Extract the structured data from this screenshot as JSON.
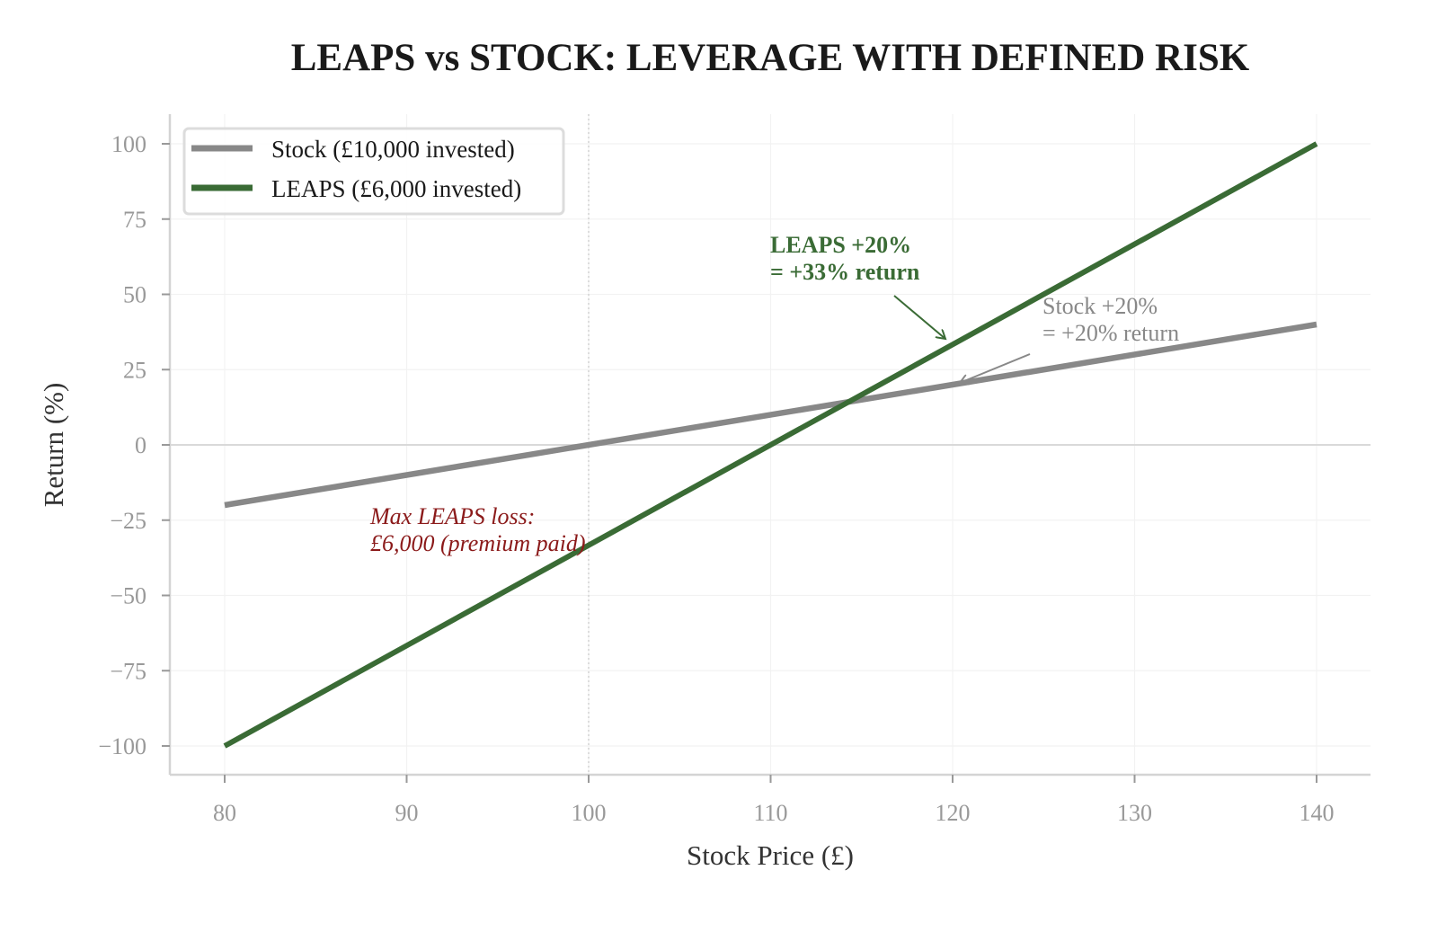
{
  "chart_data": {
    "type": "line",
    "title": "LEAPS vs STOCK: LEVERAGE WITH DEFINED RISK",
    "xlabel": "Stock Price (£)",
    "ylabel": "Return (%)",
    "xlim": [
      77,
      143
    ],
    "ylim": [
      -110,
      110
    ],
    "xticks": [
      80,
      90,
      100,
      110,
      120,
      130,
      140
    ],
    "yticks": [
      -100,
      -75,
      -50,
      -25,
      0,
      25,
      50,
      75,
      100
    ],
    "xtick_labels": [
      "80",
      "90",
      "100",
      "110",
      "120",
      "130",
      "140"
    ],
    "ytick_labels": [
      "−100",
      "−75",
      "−50",
      "−25",
      "0",
      "25",
      "50",
      "75",
      "100"
    ],
    "grid": true,
    "reference_lines": {
      "vertical_x": 100,
      "horizontal_y": 0
    },
    "legend_position": "upper-left",
    "series": [
      {
        "name": "Stock (£10,000 invested)",
        "color": "#888888",
        "x": [
          80,
          140
        ],
        "y": [
          -20,
          40
        ]
      },
      {
        "name": "LEAPS (£6,000 invested)",
        "color": "#3a6b35",
        "x": [
          80,
          140
        ],
        "y": [
          -100,
          100
        ]
      }
    ],
    "annotations": [
      {
        "lines": [
          "LEAPS +20%",
          "= +33% return"
        ],
        "point": [
          120,
          33.3
        ],
        "text_at": [
          110,
          67
        ],
        "color": "#3a6b35",
        "style": "bold"
      },
      {
        "lines": [
          "Stock +20%",
          "= +20% return"
        ],
        "point": [
          120,
          20
        ],
        "text_at": [
          125,
          45
        ],
        "color": "#888888",
        "style": "normal"
      },
      {
        "lines": [
          "Max LEAPS loss:",
          "£6,000 (premium paid)"
        ],
        "text_at": [
          88,
          -24
        ],
        "color": "#8b1a1a",
        "style": "italic"
      }
    ]
  }
}
